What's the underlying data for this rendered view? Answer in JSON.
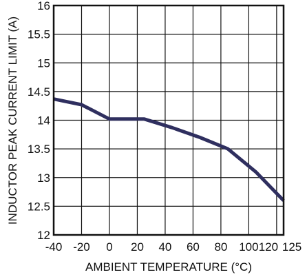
{
  "chart_data": {
    "type": "line",
    "xlabel": "AMBIENT TEMPERATURE (°C)",
    "ylabel": "INDUCTOR PEAK CURRENT LIMIT (A)",
    "xlim": [
      -40,
      125
    ],
    "ylim": [
      12,
      16
    ],
    "x_ticks": [
      "-40",
      "-20",
      "0",
      "20",
      "40",
      "60",
      "80",
      "100",
      "120",
      "125"
    ],
    "y_ticks": [
      "16",
      "15.5",
      "15",
      "14.5",
      "14",
      "13.5",
      "13",
      "12.5",
      "12"
    ],
    "x_grid_values": [
      -40,
      -20,
      0,
      20,
      40,
      60,
      80,
      100,
      120
    ],
    "y_grid_values": [
      12,
      12.5,
      13,
      13.5,
      14,
      14.5,
      15,
      15.5,
      16
    ],
    "grid": true,
    "series": [
      {
        "x": [
          -40,
          -20,
          0,
          25,
          45,
          65,
          85,
          105,
          125
        ],
        "y": [
          14.37,
          14.27,
          14.02,
          14.02,
          13.87,
          13.7,
          13.5,
          13.1,
          12.6
        ]
      }
    ]
  },
  "style": {
    "line_color": "#2f2f5f",
    "grid_color": "#111111",
    "background": "#ffffff"
  }
}
